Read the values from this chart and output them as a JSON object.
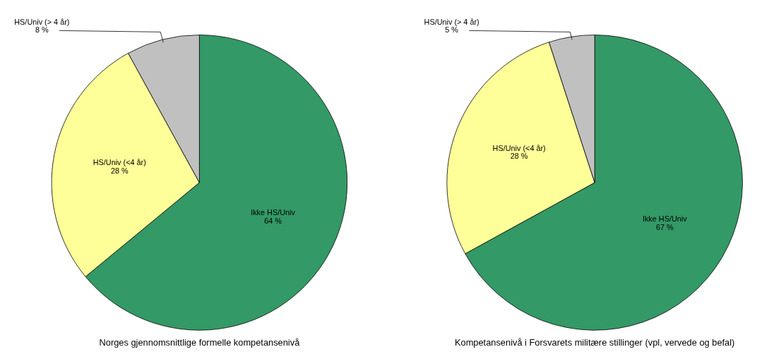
{
  "chart_data": [
    {
      "type": "pie",
      "title": "Norges gjennomsnittlige formelle kompetansenivå",
      "categories": [
        "Ikke HS/Univ",
        "HS/Univ (<4 år)",
        "HS/Univ (> 4 år)"
      ],
      "values": [
        64,
        28,
        8
      ],
      "value_labels": [
        "64 %",
        "28 %",
        "8 %"
      ],
      "colors": [
        "#339966",
        "#ffff99",
        "#c0c0c0"
      ]
    },
    {
      "type": "pie",
      "title": "Kompetansenivå i Forsvarets militære stillinger (vpl, vervede og befal)",
      "categories": [
        "Ikke HS/Univ",
        "HS/Univ (<4 år)",
        "HS/Univ (> 4 år)"
      ],
      "values": [
        67,
        28,
        5
      ],
      "value_labels": [
        "67 %",
        "28 %",
        "5 %"
      ],
      "colors": [
        "#339966",
        "#ffff99",
        "#c0c0c0"
      ]
    }
  ]
}
